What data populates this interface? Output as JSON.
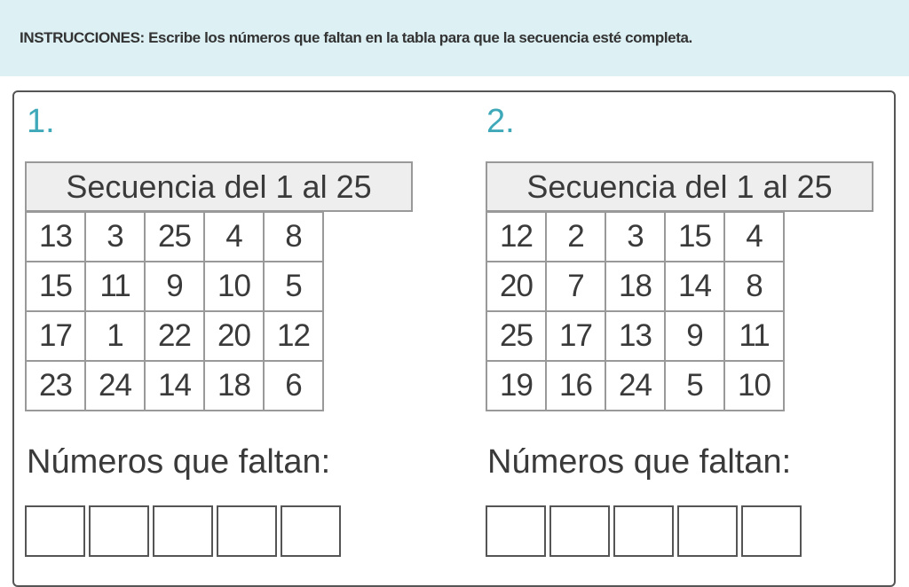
{
  "instructions": "INSTRUCCIONES: Escribe los números que faltan en la tabla para que la secuencia esté completa.",
  "colors": {
    "banner": "#ddf0f4",
    "exercise_number": "#3fa9b9"
  },
  "exercises": [
    {
      "number": "1.",
      "header": "Secuencia del 1 al 25",
      "cells": [
        "13",
        "3",
        "25",
        "4",
        "8",
        "15",
        "11",
        "9",
        "10",
        "5",
        "17",
        "1",
        "22",
        "20",
        "12",
        "23",
        "24",
        "14",
        "18",
        "6"
      ],
      "missing_label": "Números que faltan:",
      "answer_boxes": 5
    },
    {
      "number": "2.",
      "header": "Secuencia del 1 al 25",
      "cells": [
        "12",
        "2",
        "3",
        "15",
        "4",
        "20",
        "7",
        "18",
        "14",
        "8",
        "25",
        "17",
        "13",
        "9",
        "11",
        "19",
        "16",
        "24",
        "5",
        "10"
      ],
      "missing_label": "Números que faltan:",
      "answer_boxes": 5
    }
  ]
}
